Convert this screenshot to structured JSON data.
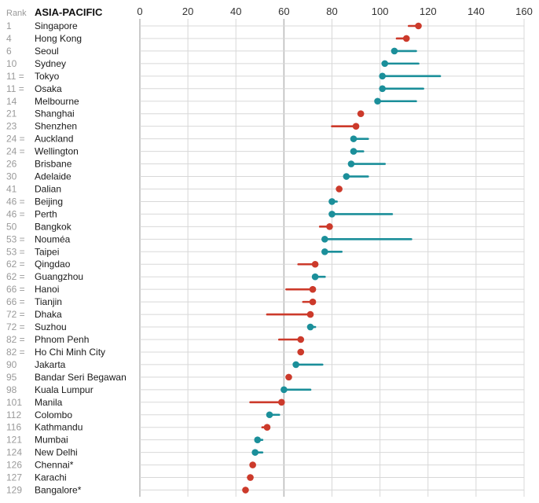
{
  "header": {
    "rank_label": "Rank",
    "region": "ASIA-PACIFIC"
  },
  "colors": {
    "rise": "#1b8f9a",
    "fall": "#cc3a2b",
    "grid": "#d8d8d8",
    "axis_zero": "#bcbcbc",
    "grid_strong": "#bcbcbc"
  },
  "chart_data": {
    "type": "dumbbell",
    "title": "ASIA-PACIFIC",
    "xlim": [
      0,
      160
    ],
    "xticks": [
      "0",
      "20",
      "40",
      "60",
      "80",
      "100",
      "120",
      "140",
      "160"
    ],
    "grid": true,
    "rows": [
      {
        "rank": "1",
        "city": "Singapore",
        "current": 116,
        "previous": 112,
        "color": "fall"
      },
      {
        "rank": "4",
        "city": "Hong Kong",
        "current": 111,
        "previous": 107,
        "color": "fall"
      },
      {
        "rank": "6",
        "city": "Seoul",
        "current": 106,
        "previous": 115,
        "color": "rise"
      },
      {
        "rank": "10",
        "city": "Sydney",
        "current": 102,
        "previous": 116,
        "color": "rise"
      },
      {
        "rank": "11 =",
        "city": "Tokyo",
        "current": 101,
        "previous": 125,
        "color": "rise"
      },
      {
        "rank": "11 =",
        "city": "Osaka",
        "current": 101,
        "previous": 118,
        "color": "rise"
      },
      {
        "rank": "14",
        "city": "Melbourne",
        "current": 99,
        "previous": 115,
        "color": "rise"
      },
      {
        "rank": "21",
        "city": "Shanghai",
        "current": 92,
        "previous": 91,
        "color": "fall"
      },
      {
        "rank": "23",
        "city": "Shenzhen",
        "current": 90,
        "previous": 80,
        "color": "fall"
      },
      {
        "rank": "24 =",
        "city": "Auckland",
        "current": 89,
        "previous": 95,
        "color": "rise"
      },
      {
        "rank": "24 =",
        "city": "Wellington",
        "current": 89,
        "previous": 93,
        "color": "rise"
      },
      {
        "rank": "26",
        "city": "Brisbane",
        "current": 88,
        "previous": 102,
        "color": "rise"
      },
      {
        "rank": "30",
        "city": "Adelaide",
        "current": 86,
        "previous": 95,
        "color": "rise"
      },
      {
        "rank": "41",
        "city": "Dalian",
        "current": 83,
        "previous": 83,
        "color": "fall"
      },
      {
        "rank": "46 =",
        "city": "Beijing",
        "current": 80,
        "previous": 82,
        "color": "rise"
      },
      {
        "rank": "46 =",
        "city": "Perth",
        "current": 80,
        "previous": 105,
        "color": "rise"
      },
      {
        "rank": "50",
        "city": "Bangkok",
        "current": 79,
        "previous": 75,
        "color": "fall"
      },
      {
        "rank": "53 =",
        "city": "Nouméa",
        "current": 77,
        "previous": 113,
        "color": "rise"
      },
      {
        "rank": "53 =",
        "city": "Taipei",
        "current": 77,
        "previous": 84,
        "color": "rise"
      },
      {
        "rank": "62 =",
        "city": "Qingdao",
        "current": 73,
        "previous": 66,
        "color": "fall"
      },
      {
        "rank": "62 =",
        "city": "Guangzhou",
        "current": 73,
        "previous": 77,
        "color": "rise"
      },
      {
        "rank": "66 =",
        "city": "Hanoi",
        "current": 72,
        "previous": 61,
        "color": "fall"
      },
      {
        "rank": "66 =",
        "city": "Tianjin",
        "current": 72,
        "previous": 68,
        "color": "fall"
      },
      {
        "rank": "72 =",
        "city": "Dhaka",
        "current": 71,
        "previous": 53,
        "color": "fall"
      },
      {
        "rank": "72 =",
        "city": "Suzhou",
        "current": 71,
        "previous": 73,
        "color": "rise"
      },
      {
        "rank": "82 =",
        "city": "Phnom Penh",
        "current": 67,
        "previous": 58,
        "color": "fall"
      },
      {
        "rank": "82 =",
        "city": "Ho Chi Minh City",
        "current": 67,
        "previous": 66,
        "color": "fall"
      },
      {
        "rank": "90",
        "city": "Jakarta",
        "current": 65,
        "previous": 76,
        "color": "rise"
      },
      {
        "rank": "95",
        "city": "Bandar Seri Begawan",
        "current": 62,
        "previous": 62,
        "color": "fall"
      },
      {
        "rank": "98",
        "city": "Kuala Lumpur",
        "current": 60,
        "previous": 71,
        "color": "rise"
      },
      {
        "rank": "101",
        "city": "Manila",
        "current": 59,
        "previous": 46,
        "color": "fall"
      },
      {
        "rank": "112",
        "city": "Colombo",
        "current": 54,
        "previous": 58,
        "color": "rise"
      },
      {
        "rank": "116",
        "city": "Kathmandu",
        "current": 53,
        "previous": 51,
        "color": "fall"
      },
      {
        "rank": "121",
        "city": "Mumbai",
        "current": 49,
        "previous": 51,
        "color": "rise"
      },
      {
        "rank": "124",
        "city": "New Delhi",
        "current": 48,
        "previous": 51,
        "color": "rise"
      },
      {
        "rank": "126",
        "city": "Chennai*",
        "current": 47,
        "previous": 47,
        "color": "fall"
      },
      {
        "rank": "127",
        "city": "Karachi",
        "current": 46,
        "previous": 45,
        "color": "fall"
      },
      {
        "rank": "129",
        "city": "Bangalore*",
        "current": 44,
        "previous": 44,
        "color": "fall"
      }
    ]
  }
}
